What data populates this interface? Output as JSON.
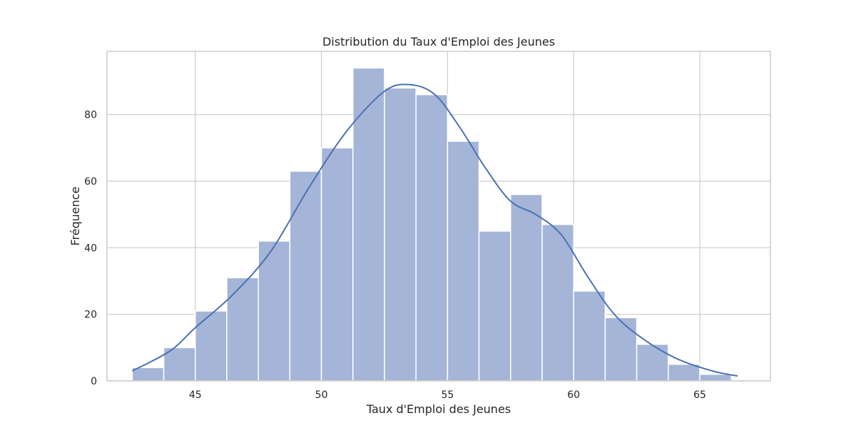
{
  "chart_data": {
    "type": "bar",
    "subtype": "histogram_with_kde",
    "title": "Distribution du Taux d'Emploi des Jeunes",
    "xlabel": "Taux d'Emploi des Jeunes",
    "ylabel": "Fréquence",
    "xlim": [
      41.5,
      67.8
    ],
    "ylim": [
      0,
      99
    ],
    "x_ticks": [
      45,
      50,
      55,
      60,
      65
    ],
    "y_ticks": [
      0,
      20,
      40,
      60,
      80
    ],
    "grid": true,
    "bins": [
      {
        "x0": 42.5,
        "x1": 43.75,
        "count": 4
      },
      {
        "x0": 43.75,
        "x1": 45.0,
        "count": 10
      },
      {
        "x0": 45.0,
        "x1": 46.25,
        "count": 21
      },
      {
        "x0": 46.25,
        "x1": 47.5,
        "count": 31
      },
      {
        "x0": 47.5,
        "x1": 48.75,
        "count": 42
      },
      {
        "x0": 48.75,
        "x1": 50.0,
        "count": 63
      },
      {
        "x0": 50.0,
        "x1": 51.25,
        "count": 70
      },
      {
        "x0": 51.25,
        "x1": 52.5,
        "count": 94
      },
      {
        "x0": 52.5,
        "x1": 53.75,
        "count": 88
      },
      {
        "x0": 53.75,
        "x1": 55.0,
        "count": 86
      },
      {
        "x0": 55.0,
        "x1": 56.25,
        "count": 72
      },
      {
        "x0": 56.25,
        "x1": 57.5,
        "count": 45
      },
      {
        "x0": 57.5,
        "x1": 58.75,
        "count": 56
      },
      {
        "x0": 58.75,
        "x1": 60.0,
        "count": 47
      },
      {
        "x0": 60.0,
        "x1": 61.25,
        "count": 27
      },
      {
        "x0": 61.25,
        "x1": 62.5,
        "count": 19
      },
      {
        "x0": 62.5,
        "x1": 63.75,
        "count": 11
      },
      {
        "x0": 63.75,
        "x1": 65.0,
        "count": 5
      },
      {
        "x0": 65.0,
        "x1": 66.25,
        "count": 2
      }
    ],
    "kde": {
      "x": [
        42.5,
        44.0,
        45.0,
        46.5,
        48.0,
        49.5,
        51.0,
        52.5,
        53.5,
        54.5,
        55.5,
        56.5,
        57.5,
        58.5,
        59.5,
        60.5,
        61.5,
        62.5,
        64.0,
        65.5,
        66.5
      ],
      "y": [
        3,
        9,
        16,
        26,
        39,
        58,
        75,
        87,
        89,
        86,
        76,
        64,
        54,
        50,
        44,
        32,
        21,
        14,
        7,
        3,
        1.5
      ]
    },
    "colors": {
      "bar_fill": "#a4b5d8",
      "bar_edge": "#ffffff",
      "kde_line": "#4c72b0",
      "grid": "#cccccc",
      "text": "#262626"
    }
  }
}
